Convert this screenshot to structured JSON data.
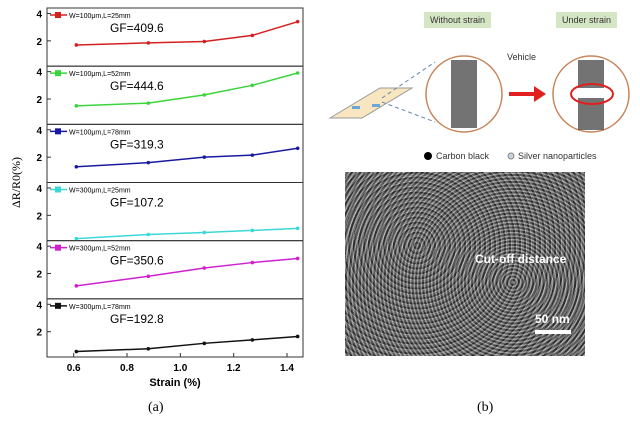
{
  "chart_data": {
    "type": "line",
    "xlabel": "Strain (%)",
    "ylabel": "ΔR/R0(%)",
    "xlim": [
      0.5,
      1.46
    ],
    "ylim": [
      0.15,
      4.4
    ],
    "xticks": [
      "0.6",
      "0.8",
      "1.0",
      "1.2",
      "1.4"
    ],
    "yticks": [
      "2",
      "4"
    ],
    "x": [
      0.61,
      0.88,
      1.09,
      1.27,
      1.44
    ],
    "series": [
      {
        "name": "W=100μm,L=25mm",
        "gf": "GF=409.6",
        "color": "#d42020",
        "values": [
          1.7,
          1.85,
          1.95,
          2.4,
          3.4
        ]
      },
      {
        "name": "W=100μm,L=52mm",
        "gf": "GF=444.6",
        "color": "#3cd43c",
        "values": [
          1.5,
          1.7,
          2.3,
          3.0,
          3.9
        ]
      },
      {
        "name": "W=100μm,L=78mm",
        "gf": "GF=319.3",
        "color": "#1a1aa0",
        "values": [
          1.3,
          1.6,
          2.0,
          2.15,
          2.65
        ]
      },
      {
        "name": "W=300μm,L=25mm",
        "gf": "GF=107.2",
        "color": "#3cd8d8",
        "values": [
          0.3,
          0.6,
          0.75,
          0.9,
          1.05
        ]
      },
      {
        "name": "W=300μm,L=52mm",
        "gf": "GF=350.6",
        "color": "#d020d0",
        "values": [
          1.1,
          1.8,
          2.4,
          2.8,
          3.1
        ]
      },
      {
        "name": "W=300μm,L=78mm",
        "gf": "GF=192.8",
        "color": "#111111",
        "values": [
          0.55,
          0.75,
          1.15,
          1.4,
          1.65
        ]
      }
    ]
  },
  "caption_a": "(a)",
  "caption_b": "(b)",
  "diagram": {
    "without_strain": "Without strain",
    "under_strain": "Under strain",
    "vehicle": "Vehicle",
    "legend_carbon": "Carbon black",
    "legend_silver": "Silver nanoparticles"
  },
  "sem": {
    "annotation": "Cut-off distance",
    "scale": "50 nm"
  }
}
